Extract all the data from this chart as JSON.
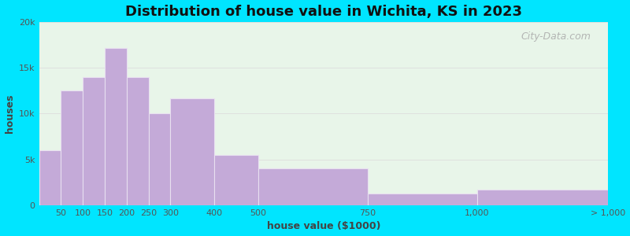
{
  "title": "Distribution of house value in Wichita, KS in 2023",
  "xlabel": "house value ($1000)",
  "ylabel": "houses",
  "bar_color": "#c4aad8",
  "bar_edgecolor": "#e8e0f0",
  "background_outer": "#00e5ff",
  "background_inner": "#e8f5e9",
  "ylim": [
    0,
    20000
  ],
  "yticks": [
    0,
    5000,
    10000,
    15000,
    20000
  ],
  "ytick_labels": [
    "0",
    "5k",
    "10k",
    "15k",
    "20k"
  ],
  "bin_edges": [
    0,
    50,
    100,
    150,
    200,
    250,
    300,
    400,
    500,
    750,
    1000,
    1300
  ],
  "bin_labels": [
    "50",
    "100",
    "150",
    "200",
    "250",
    "300",
    "400",
    "500",
    "750",
    "1,000",
    "> 1,000"
  ],
  "values": [
    6000,
    12500,
    14000,
    17200,
    14000,
    10000,
    11700,
    5500,
    4000,
    1300,
    1700
  ],
  "title_fontsize": 13,
  "axis_label_fontsize": 9,
  "tick_fontsize": 8,
  "watermark_text": "City-Data.com"
}
